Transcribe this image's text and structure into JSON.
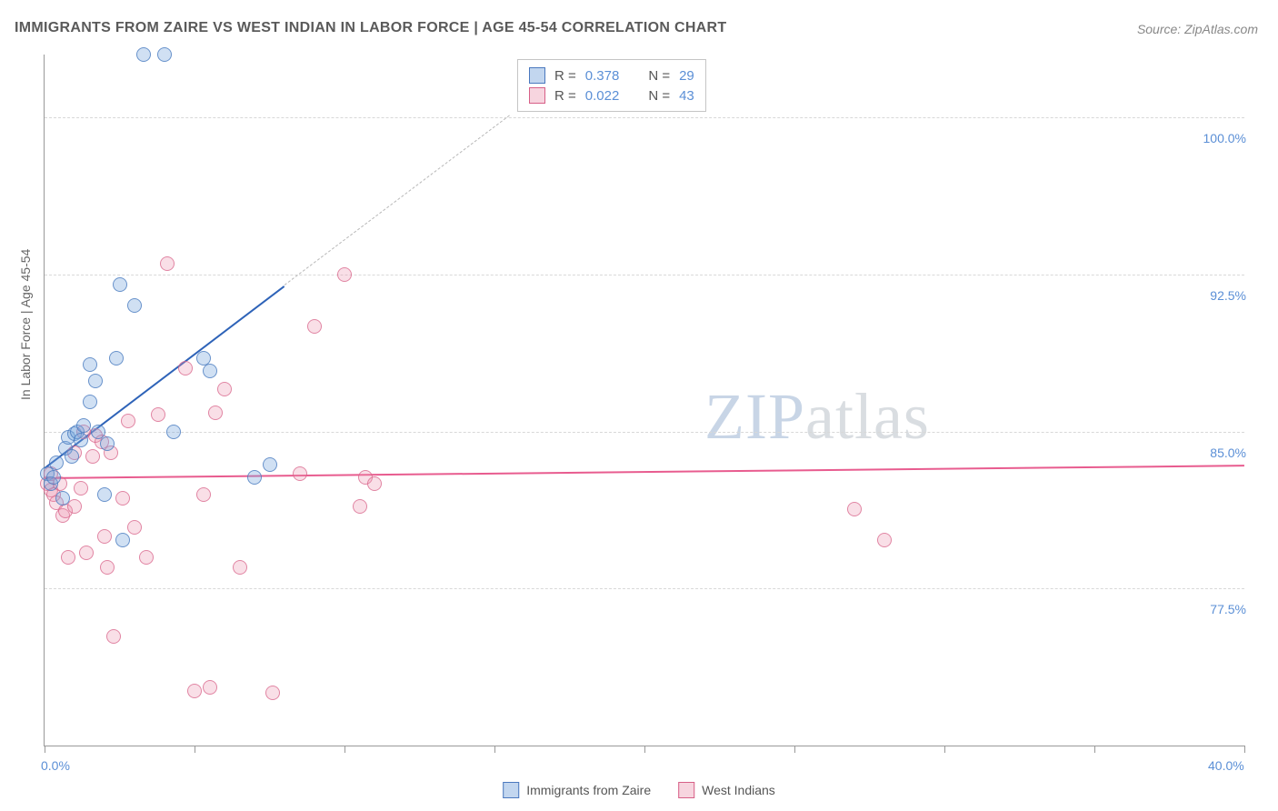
{
  "title": "IMMIGRANTS FROM ZAIRE VS WEST INDIAN IN LABOR FORCE | AGE 45-54 CORRELATION CHART",
  "source_label": "Source:",
  "source_value": "ZipAtlas.com",
  "y_axis_label": "In Labor Force | Age 45-54",
  "watermark_a": "ZIP",
  "watermark_b": "atlas",
  "chart": {
    "type": "scatter",
    "x_domain": [
      0,
      40
    ],
    "y_domain": [
      70,
      103
    ],
    "x_ticks": [
      0,
      5,
      10,
      15,
      20,
      25,
      30,
      35,
      40
    ],
    "x_tick_labels": {
      "0": "0.0%",
      "40": "40.0%"
    },
    "y_ticks": [
      77.5,
      85.0,
      92.5,
      100.0
    ],
    "y_tick_labels": [
      "77.5%",
      "85.0%",
      "92.5%",
      "100.0%"
    ],
    "gridline_color": "#d8d8d8",
    "axis_color": "#999999",
    "background_color": "#ffffff",
    "marker_radius": 8,
    "series": [
      {
        "name": "Immigrants from Zaire",
        "color_fill": "rgba(120,165,220,0.35)",
        "color_stroke": "#4a78be",
        "trend": {
          "color": "#2e63b8",
          "width": 2,
          "x1": 0,
          "y1": 83.3,
          "x2": 8.0,
          "y2": 92.0,
          "dashed_extension": {
            "x2": 15.5,
            "y2": 100.1
          }
        },
        "stats": {
          "R": "0.378",
          "N": "29"
        },
        "points": [
          [
            0.1,
            83.0
          ],
          [
            0.2,
            82.5
          ],
          [
            0.3,
            82.8
          ],
          [
            0.4,
            83.5
          ],
          [
            0.7,
            84.2
          ],
          [
            0.8,
            84.7
          ],
          [
            1.0,
            84.9
          ],
          [
            1.1,
            85.0
          ],
          [
            1.2,
            84.6
          ],
          [
            1.3,
            85.3
          ],
          [
            1.5,
            86.4
          ],
          [
            1.5,
            88.2
          ],
          [
            1.7,
            87.4
          ],
          [
            1.8,
            85.0
          ],
          [
            2.0,
            82.0
          ],
          [
            2.1,
            84.4
          ],
          [
            2.4,
            88.5
          ],
          [
            2.5,
            92.0
          ],
          [
            2.6,
            79.8
          ],
          [
            3.0,
            91.0
          ],
          [
            3.3,
            103.0
          ],
          [
            4.0,
            103.0
          ],
          [
            4.3,
            85.0
          ],
          [
            5.3,
            88.5
          ],
          [
            5.5,
            87.9
          ],
          [
            7.0,
            82.8
          ],
          [
            7.5,
            83.4
          ],
          [
            0.6,
            81.8
          ],
          [
            0.9,
            83.8
          ]
        ]
      },
      {
        "name": "West Indians",
        "color_fill": "rgba(235,150,175,0.30)",
        "color_stroke": "#d75f87",
        "trend": {
          "color": "#e85c8f",
          "width": 2,
          "x1": 0,
          "y1": 82.8,
          "x2": 40,
          "y2": 83.4
        },
        "stats": {
          "R": "0.022",
          "N": "43"
        },
        "points": [
          [
            0.1,
            82.5
          ],
          [
            0.2,
            82.2
          ],
          [
            0.2,
            83.0
          ],
          [
            0.3,
            82.0
          ],
          [
            0.4,
            81.6
          ],
          [
            0.5,
            82.5
          ],
          [
            0.6,
            81.0
          ],
          [
            0.7,
            81.2
          ],
          [
            0.8,
            79.0
          ],
          [
            1.0,
            81.4
          ],
          [
            1.2,
            82.3
          ],
          [
            1.4,
            79.2
          ],
          [
            1.6,
            83.8
          ],
          [
            1.7,
            84.8
          ],
          [
            1.9,
            84.5
          ],
          [
            2.0,
            80.0
          ],
          [
            2.1,
            78.5
          ],
          [
            2.3,
            75.2
          ],
          [
            2.6,
            81.8
          ],
          [
            2.8,
            85.5
          ],
          [
            3.0,
            80.4
          ],
          [
            3.4,
            79.0
          ],
          [
            3.8,
            85.8
          ],
          [
            4.1,
            93.0
          ],
          [
            4.7,
            88.0
          ],
          [
            5.0,
            72.6
          ],
          [
            5.3,
            82.0
          ],
          [
            5.5,
            72.8
          ],
          [
            5.7,
            85.9
          ],
          [
            6.0,
            87.0
          ],
          [
            6.5,
            78.5
          ],
          [
            7.6,
            72.5
          ],
          [
            8.5,
            83.0
          ],
          [
            9.0,
            90.0
          ],
          [
            10.0,
            92.5
          ],
          [
            10.5,
            81.4
          ],
          [
            10.7,
            82.8
          ],
          [
            11.0,
            82.5
          ],
          [
            27.0,
            81.3
          ],
          [
            28.0,
            79.8
          ],
          [
            1.0,
            84.0
          ],
          [
            1.3,
            85.0
          ],
          [
            2.2,
            84.0
          ]
        ]
      }
    ]
  },
  "stat_legend": {
    "rows": [
      {
        "swatch": "blue",
        "r": "0.378",
        "n": "29"
      },
      {
        "swatch": "pink",
        "r": "0.022",
        "n": "43"
      }
    ],
    "r_label": "R =",
    "n_label": "N ="
  },
  "bottom_legend": [
    {
      "swatch": "blue",
      "label": "Immigrants from Zaire"
    },
    {
      "swatch": "pink",
      "label": "West Indians"
    }
  ]
}
